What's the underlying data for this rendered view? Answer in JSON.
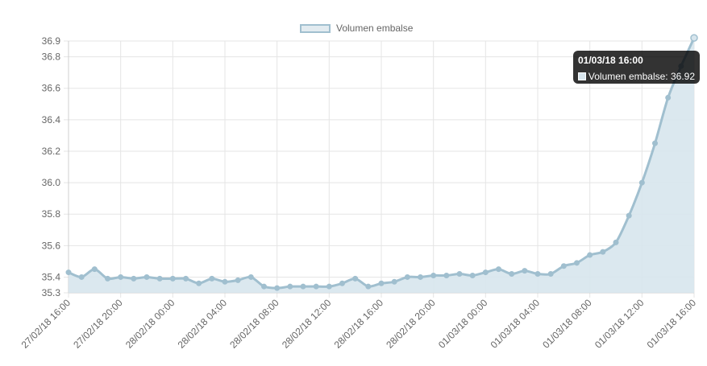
{
  "chart_data": {
    "type": "area",
    "title": "",
    "xlabel": "",
    "ylabel": "",
    "legend": {
      "position": "top",
      "entries": [
        "Volumen embalse"
      ]
    },
    "grid": true,
    "ylim": [
      35.3,
      36.9
    ],
    "yticks": [
      "36.9",
      "36.8",
      "36.6",
      "36.4",
      "36.2",
      "36.0",
      "35.8",
      "35.6",
      "35.4",
      "35.3"
    ],
    "ytick_values": [
      36.9,
      36.8,
      36.6,
      36.4,
      36.2,
      36.0,
      35.8,
      35.6,
      35.4,
      35.3
    ],
    "xticks": [
      "27/02/18 16:00",
      "27/02/18 20:00",
      "28/02/18 00:00",
      "28/02/18 04:00",
      "28/02/18 08:00",
      "28/02/18 12:00",
      "28/02/18 16:00",
      "28/02/18 20:00",
      "01/03/18 00:00",
      "01/03/18 04:00",
      "01/03/18 08:00",
      "01/03/18 12:00",
      "01/03/18 16:00"
    ],
    "x_start": "27/02/18 16:00",
    "x_end": "01/03/18 16:00",
    "series": [
      {
        "name": "Volumen embalse",
        "color": "#a0bfcf",
        "fill": "#d7e5ed",
        "values": [
          35.43,
          35.4,
          35.45,
          35.39,
          35.4,
          35.39,
          35.4,
          35.39,
          35.39,
          35.39,
          35.36,
          35.39,
          35.37,
          35.38,
          35.4,
          35.34,
          35.33,
          35.34,
          35.34,
          35.34,
          35.34,
          35.36,
          35.39,
          35.34,
          35.36,
          35.37,
          35.4,
          35.4,
          35.41,
          35.41,
          35.42,
          35.41,
          35.43,
          35.45,
          35.42,
          35.44,
          35.42,
          35.42,
          35.47,
          35.49,
          35.54,
          35.56,
          35.62,
          35.79,
          36.0,
          36.25,
          36.54,
          36.74,
          36.92
        ]
      }
    ]
  },
  "tooltip": {
    "title": "01/03/18 16:00",
    "label": "Volumen embalse: 36.92"
  },
  "legend_label": "Volumen embalse"
}
